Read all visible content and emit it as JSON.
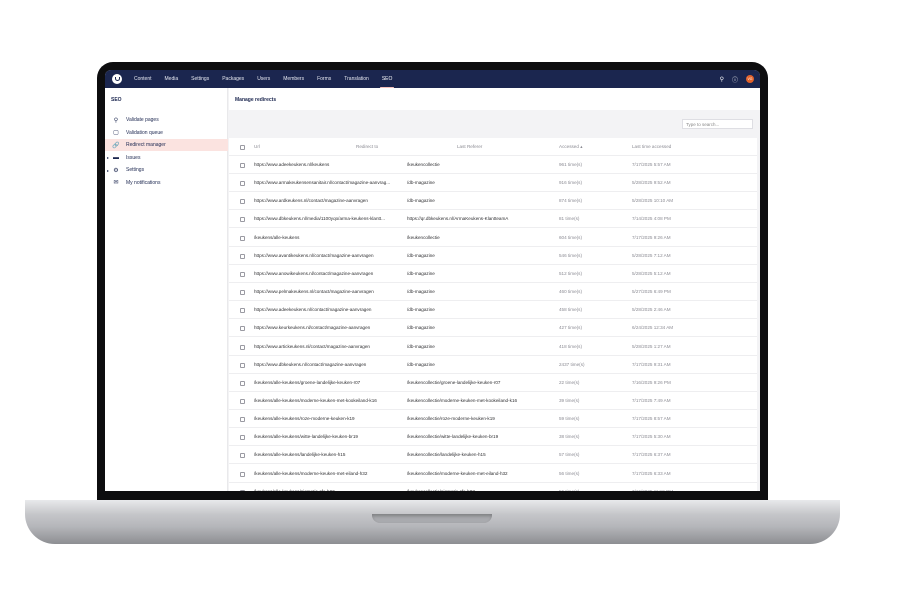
{
  "topbar": {
    "nav": [
      "Content",
      "Media",
      "Settings",
      "Packages",
      "Users",
      "Members",
      "Forms",
      "Translation",
      "SEO"
    ],
    "active": "SEO",
    "avatar_initials": "VG"
  },
  "sidebar": {
    "title": "SEO",
    "items": [
      {
        "label": "Validate pages",
        "icon": "search-icon"
      },
      {
        "label": "Validation queue",
        "icon": "queue-icon"
      },
      {
        "label": "Redirect manager",
        "icon": "link-icon",
        "active": true
      },
      {
        "label": "Issues",
        "icon": "folder-icon",
        "expandable": true
      },
      {
        "label": "Settings",
        "icon": "gear-icon",
        "expandable": true
      },
      {
        "label": "My notifications",
        "icon": "envelope-icon"
      }
    ]
  },
  "main": {
    "title": "Manage redirects",
    "search_placeholder": "Type to search...",
    "columns": {
      "url": "Url",
      "redirect_to": "Redirect to",
      "last_referer": "Last Referer",
      "accessed": "Accessed ▴",
      "last_time": "Last time accessed"
    },
    "rows": [
      [
        "https://www.adeekeukens.nl/keukens",
        "/keukencollectie",
        "961 time(s)",
        "7/17/2025 5:57 AM"
      ],
      [
        "https://www.armakeukensensanitair.nl/contact/magazine-aanvrag...",
        "/db-magazine",
        "916 time(s)",
        "5/28/2025 9:52 AM"
      ],
      [
        "https://www.ardkeukens.nl/contact/magazine-aanvragen",
        "/db-magazine",
        "874 time(s)",
        "5/28/2025 10:10 AM"
      ],
      [
        "https://www.dbkeukens.nl/media/1100yqo/arma-keukens-klantt...",
        "https://qr.dbkeukens.nl/ArmaKeukens-KlantteamA",
        "81 time(s)",
        "7/14/2025 4:08 PM"
      ],
      [
        "/keukens/alle-keukens",
        "/keukencollectie",
        "604 time(s)",
        "7/17/2025 9:26 AM"
      ],
      [
        "https://www.avantikeukens.nl/contact/magazine-aanvragen",
        "/db-magazine",
        "546 time(s)",
        "5/28/2025 7:12 AM"
      ],
      [
        "https://www.anowikeukens.nl/contact/magazine-aanvragen",
        "/db-magazine",
        "512 time(s)",
        "5/28/2025 5:12 AM"
      ],
      [
        "https://www.pelmakeukens.nl/contact/magazine-aanvragen",
        "/db-magazine",
        "460 time(s)",
        "5/27/2025 6:49 PM"
      ],
      [
        "https://www.adeekeukens.nl/contact/magazine-aanvragen",
        "/db-magazine",
        "458 time(s)",
        "5/28/2025 2:46 AM"
      ],
      [
        "https://www.keurkeukens.nl/contact/magazine-aanvragen",
        "/db-magazine",
        "427 time(s)",
        "6/24/2025 12:34 AM"
      ],
      [
        "https://www.artickeukens.nl/contact/magazine-aanvragen",
        "/db-magazine",
        "418 time(s)",
        "5/28/2025 1:27 AM"
      ],
      [
        "https://www.dbkeukens.nl/contact/magazine-aanvragen",
        "/db-magazine",
        "2437 time(s)",
        "7/17/2025 9:31 AM"
      ],
      [
        "/keukens/alle-keukens/groene-landelijke-keuken-r07",
        "/keukencollectie/groene-landelijke-keuken-r07",
        "22 time(s)",
        "7/16/2025 9:26 PM"
      ],
      [
        "/keukens/alle-keukens/moderne-keuken-met-kookeiland-k16",
        "/keukencollectie/moderne-keuken-met-kookeiland-k16",
        "39 time(s)",
        "7/17/2025 7:49 AM"
      ],
      [
        "/keukens/alle-keukens/roze-moderne-keuken-k19",
        "/keukencollectie/roze-moderne-keuken-k19",
        "59 time(s)",
        "7/17/2025 8:57 AM"
      ],
      [
        "/keukens/alle-keukens/witte-landelijke-keuken-br19",
        "/keukencollectie/witte-landelijke-keuken-br19",
        "38 time(s)",
        "7/17/2025 5:30 AM"
      ],
      [
        "/keukens/alle-keukens/landelijke-keuken-h15",
        "/keukencollectie/landelijke-keuken-h15",
        "57 time(s)",
        "7/17/2025 6:37 AM"
      ],
      [
        "/keukens/alle-keukens/moderne-keuken-met-eiland-h32",
        "/keukencollectie/moderne-keuken-met-eiland-h32",
        "56 time(s)",
        "7/17/2025 6:33 AM"
      ],
      [
        "/keukens/alle-keukens/pigmatic-sfa-h03",
        "/keukencollectie/pigmatic-sfa-h03",
        "56 time(s)",
        "7/16/2025 11:19 PM"
      ]
    ]
  }
}
